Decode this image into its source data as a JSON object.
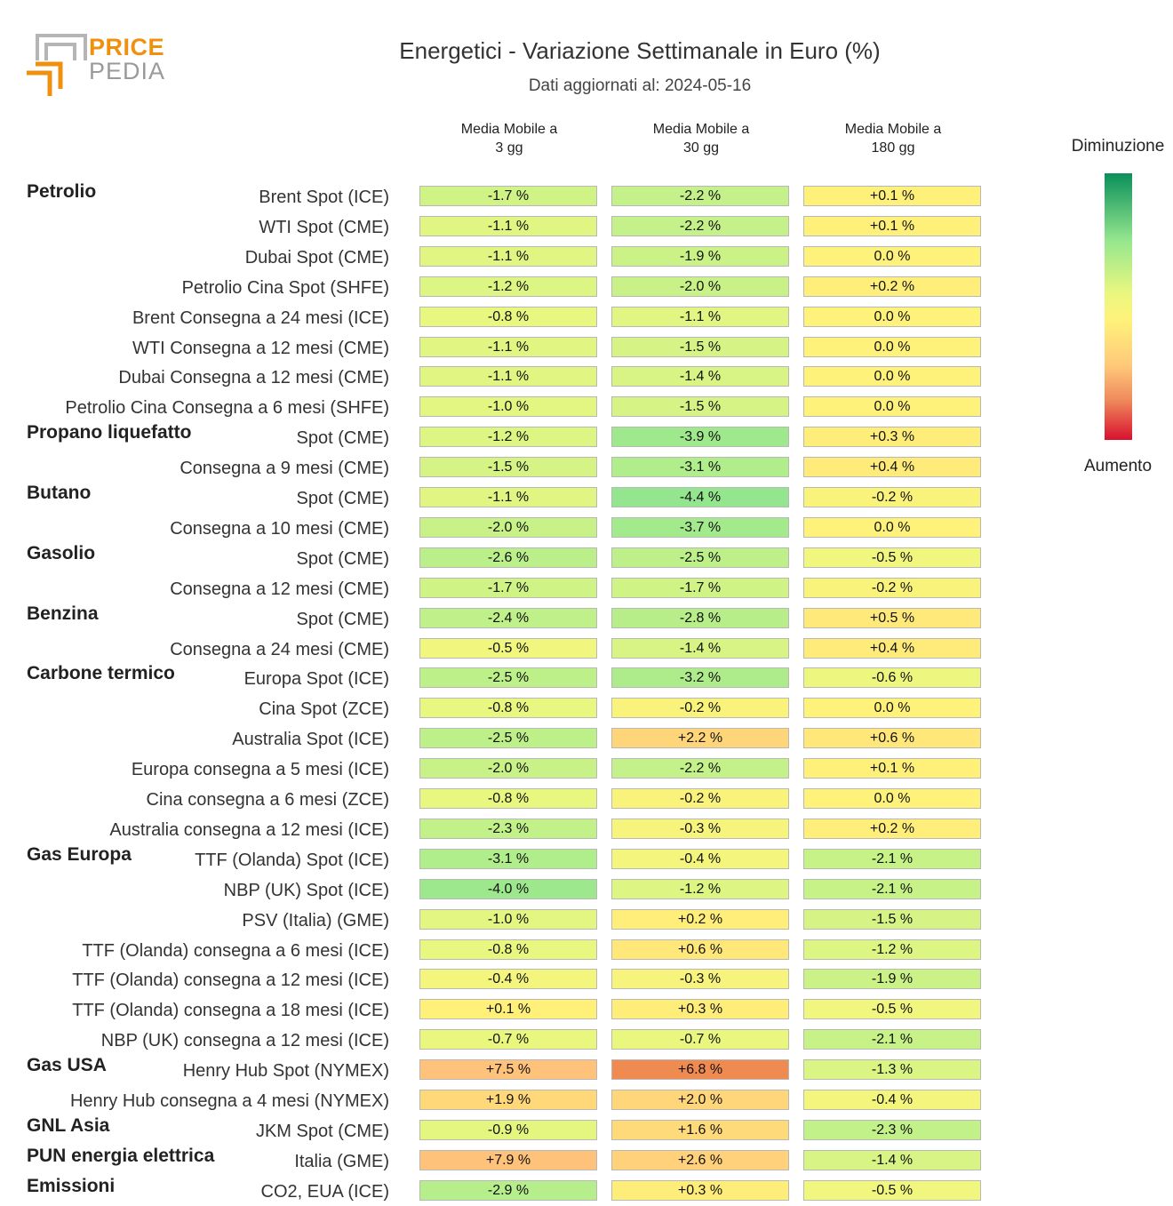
{
  "logo": {
    "line1": "PRICE",
    "line2": "PEDIA"
  },
  "title": "Energetici - Variazione Settimanale in Euro (%)",
  "subtitle": "Dati aggiornati al: 2024-05-16",
  "columns": [
    {
      "line1": "Media Mobile a",
      "line2": "3 gg"
    },
    {
      "line1": "Media Mobile a",
      "line2": "30 gg"
    },
    {
      "line1": "Media Mobile a",
      "line2": "180 gg"
    }
  ],
  "legend": {
    "top": "Diminuzione",
    "bottom": "Aumento"
  },
  "chart_data": {
    "type": "table",
    "title": "Energetici - Variazione Settimanale in Euro (%)",
    "unit": "%",
    "color_scale": {
      "min_color": "#0a8f5a",
      "mid_color": "#fff27a",
      "max_color": "#d8112f"
    },
    "columns": [
      "Media Mobile a 3 gg",
      "Media Mobile a 30 gg",
      "Media Mobile a 180 gg"
    ],
    "rows": [
      {
        "group": "Petrolio",
        "label": "Brent Spot (ICE)",
        "values": [
          "-1.7 %",
          "-2.2 %",
          "+0.1 %"
        ]
      },
      {
        "group": "",
        "label": "WTI Spot (CME)",
        "values": [
          "-1.1 %",
          "-2.2 %",
          "+0.1 %"
        ]
      },
      {
        "group": "",
        "label": "Dubai Spot (CME)",
        "values": [
          "-1.1 %",
          "-1.9 %",
          "0.0 %"
        ]
      },
      {
        "group": "",
        "label": "Petrolio Cina Spot (SHFE)",
        "values": [
          "-1.2 %",
          "-2.0 %",
          "+0.2 %"
        ]
      },
      {
        "group": "",
        "label": "Brent Consegna a 24 mesi (ICE)",
        "values": [
          "-0.8 %",
          "-1.1 %",
          "0.0 %"
        ]
      },
      {
        "group": "",
        "label": "WTI Consegna a 12 mesi (CME)",
        "values": [
          "-1.1 %",
          "-1.5 %",
          "0.0 %"
        ]
      },
      {
        "group": "",
        "label": "Dubai Consegna a 12 mesi (CME)",
        "values": [
          "-1.1 %",
          "-1.4 %",
          "0.0 %"
        ]
      },
      {
        "group": "",
        "label": "Petrolio Cina Consegna a 6 mesi (SHFE)",
        "values": [
          "-1.0 %",
          "-1.5 %",
          "0.0 %"
        ]
      },
      {
        "group": "Propano liquefatto",
        "label": "Spot (CME)",
        "values": [
          "-1.2 %",
          "-3.9 %",
          "+0.3 %"
        ]
      },
      {
        "group": "",
        "label": "Consegna a 9 mesi (CME)",
        "values": [
          "-1.5 %",
          "-3.1 %",
          "+0.4 %"
        ]
      },
      {
        "group": "Butano",
        "label": "Spot (CME)",
        "values": [
          "-1.1 %",
          "-4.4 %",
          "-0.2 %"
        ]
      },
      {
        "group": "",
        "label": "Consegna a 10 mesi (CME)",
        "values": [
          "-2.0 %",
          "-3.7 %",
          "0.0 %"
        ]
      },
      {
        "group": "Gasolio",
        "label": "Spot (CME)",
        "values": [
          "-2.6 %",
          "-2.5 %",
          "-0.5 %"
        ]
      },
      {
        "group": "",
        "label": "Consegna a 12 mesi (CME)",
        "values": [
          "-1.7 %",
          "-1.7 %",
          "-0.2 %"
        ]
      },
      {
        "group": "Benzina",
        "label": "Spot (CME)",
        "values": [
          "-2.4 %",
          "-2.8 %",
          "+0.5 %"
        ]
      },
      {
        "group": "",
        "label": "Consegna a 24 mesi (CME)",
        "values": [
          "-0.5 %",
          "-1.4 %",
          "+0.4 %"
        ]
      },
      {
        "group": "Carbone termico",
        "label": "Europa Spot (ICE)",
        "values": [
          "-2.5 %",
          "-3.2 %",
          "-0.6 %"
        ]
      },
      {
        "group": "",
        "label": "Cina Spot (ZCE)",
        "values": [
          "-0.8 %",
          "-0.2 %",
          "0.0 %"
        ]
      },
      {
        "group": "",
        "label": "Australia Spot (ICE)",
        "values": [
          "-2.5 %",
          "+2.2 %",
          "+0.6 %"
        ]
      },
      {
        "group": "",
        "label": "Europa consegna a 5 mesi (ICE)",
        "values": [
          "-2.0 %",
          "-2.2 %",
          "+0.1 %"
        ]
      },
      {
        "group": "",
        "label": "Cina consegna a 6 mesi (ZCE)",
        "values": [
          "-0.8 %",
          "-0.2 %",
          "0.0 %"
        ]
      },
      {
        "group": "",
        "label": "Australia consegna a 12 mesi (ICE)",
        "values": [
          "-2.3 %",
          "-0.3 %",
          "+0.2 %"
        ]
      },
      {
        "group": "Gas Europa",
        "label": "TTF (Olanda) Spot (ICE)",
        "values": [
          "-3.1 %",
          "-0.4 %",
          "-2.1 %"
        ]
      },
      {
        "group": "",
        "label": "NBP (UK) Spot (ICE)",
        "values": [
          "-4.0 %",
          "-1.2 %",
          "-2.1 %"
        ]
      },
      {
        "group": "",
        "label": "PSV (Italia) (GME)",
        "values": [
          "-1.0 %",
          "+0.2 %",
          "-1.5 %"
        ]
      },
      {
        "group": "",
        "label": "TTF (Olanda) consegna a 6 mesi (ICE)",
        "values": [
          "-0.8 %",
          "+0.6 %",
          "-1.2 %"
        ]
      },
      {
        "group": "",
        "label": "TTF (Olanda) consegna a 12 mesi (ICE)",
        "values": [
          "-0.4 %",
          "-0.3 %",
          "-1.9 %"
        ]
      },
      {
        "group": "",
        "label": "TTF (Olanda) consegna a 18 mesi (ICE)",
        "values": [
          "+0.1 %",
          "+0.3 %",
          "-0.5 %"
        ]
      },
      {
        "group": "",
        "label": "NBP (UK) consegna a 12 mesi (ICE)",
        "values": [
          "-0.7 %",
          "-0.7 %",
          "-2.1 %"
        ]
      },
      {
        "group": "Gas USA",
        "label": "Henry Hub Spot (NYMEX)",
        "values": [
          "+7.5 %",
          "+6.8 %",
          "-1.3 %"
        ]
      },
      {
        "group": "",
        "label": "Henry Hub consegna a 4 mesi (NYMEX)",
        "values": [
          "+1.9 %",
          "+2.0 %",
          "-0.4 %"
        ]
      },
      {
        "group": "GNL Asia",
        "label": "JKM Spot (CME)",
        "values": [
          "-0.9 %",
          "+1.6 %",
          "-2.3 %"
        ]
      },
      {
        "group": "PUN energia elettrica",
        "label": "Italia (GME)",
        "values": [
          "+7.9 %",
          "+2.6 %",
          "-1.4 %"
        ]
      },
      {
        "group": "Emissioni",
        "label": "CO2, EUA (ICE)",
        "values": [
          "-2.9 %",
          "+0.3 %",
          "-0.5 %"
        ]
      }
    ]
  }
}
